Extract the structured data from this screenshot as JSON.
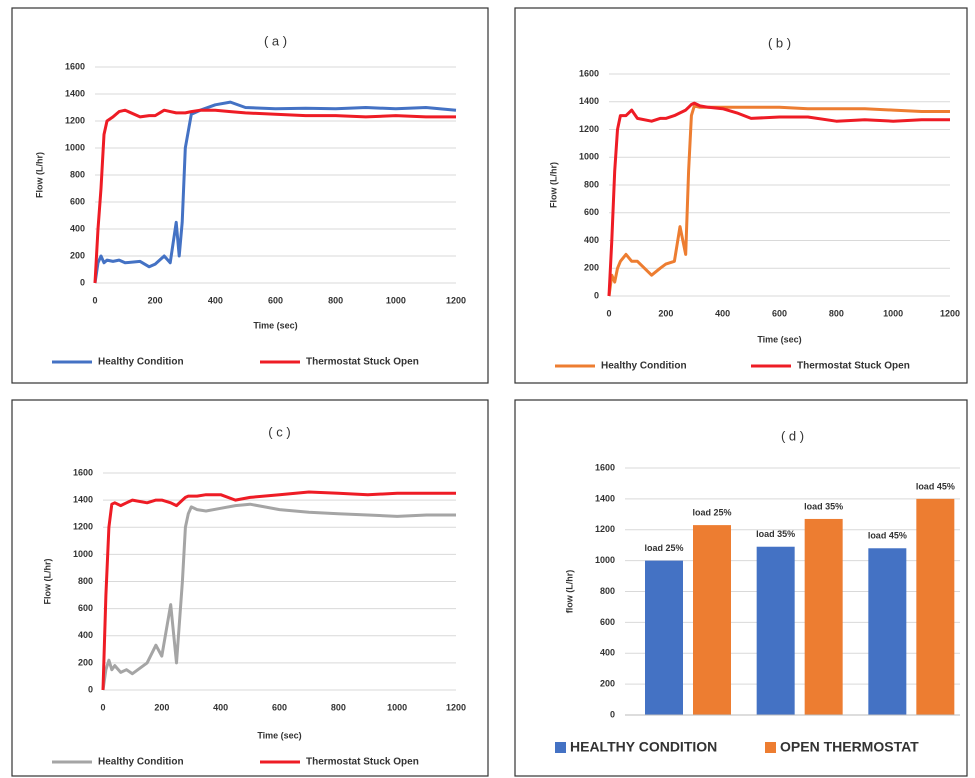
{
  "chart_data": [
    {
      "type": "line",
      "title": "( a )",
      "x_label": "Time (sec)",
      "y_label": "Flow (L/hr)",
      "x": [
        0,
        10,
        20,
        30,
        40,
        60,
        80,
        100,
        150,
        180,
        200,
        230,
        250,
        270,
        280,
        290,
        300,
        320,
        350,
        400,
        450,
        500,
        600,
        700,
        800,
        900,
        1000,
        1100,
        1200
      ],
      "series": [
        {
          "name": "Healthy Condition",
          "color": "#4472c4",
          "values": [
            0,
            150,
            200,
            150,
            170,
            160,
            170,
            150,
            160,
            120,
            140,
            200,
            150,
            450,
            200,
            450,
            1000,
            1250,
            1280,
            1320,
            1340,
            1300,
            1290,
            1295,
            1290,
            1300,
            1290,
            1300,
            1280
          ]
        },
        {
          "name": "Thermostat Stuck Open",
          "color": "#ee1c25",
          "values": [
            0,
            400,
            700,
            1100,
            1200,
            1230,
            1270,
            1280,
            1230,
            1240,
            1240,
            1280,
            1270,
            1260,
            1260,
            1260,
            1260,
            1270,
            1280,
            1280,
            1270,
            1260,
            1250,
            1240,
            1240,
            1230,
            1240,
            1230,
            1230
          ]
        }
      ],
      "xlim": [
        0,
        1200
      ],
      "xticks": [
        0,
        200,
        400,
        600,
        800,
        1000,
        1200
      ],
      "ylim": [
        0,
        1600
      ],
      "yticks": [
        0,
        200,
        400,
        600,
        800,
        1000,
        1200,
        1400,
        1600
      ],
      "grid": true,
      "legend": "bottom"
    },
    {
      "type": "line",
      "title": "( b )",
      "x_label": "Time (sec)",
      "y_label": "Flow (L/hr)",
      "x": [
        0,
        10,
        20,
        30,
        40,
        60,
        80,
        100,
        150,
        180,
        200,
        230,
        250,
        270,
        280,
        290,
        300,
        320,
        350,
        400,
        450,
        500,
        600,
        700,
        800,
        900,
        1000,
        1100,
        1200
      ],
      "series": [
        {
          "name": "Healthy Condition",
          "color": "#ed7d31",
          "values": [
            0,
            150,
            100,
            200,
            250,
            300,
            250,
            250,
            150,
            200,
            230,
            250,
            500,
            300,
            900,
            1300,
            1370,
            1360,
            1360,
            1360,
            1360,
            1360,
            1360,
            1350,
            1350,
            1350,
            1340,
            1330,
            1330
          ]
        },
        {
          "name": "Thermostat Stuck Open",
          "color": "#ee1c25",
          "values": [
            0,
            400,
            900,
            1200,
            1300,
            1300,
            1340,
            1280,
            1260,
            1280,
            1280,
            1300,
            1320,
            1340,
            1360,
            1380,
            1390,
            1370,
            1360,
            1350,
            1320,
            1280,
            1290,
            1290,
            1260,
            1270,
            1260,
            1270,
            1270
          ]
        }
      ],
      "xlim": [
        0,
        1200
      ],
      "xticks": [
        0,
        200,
        400,
        600,
        800,
        1000,
        1200
      ],
      "ylim": [
        0,
        1600
      ],
      "yticks": [
        0,
        200,
        400,
        600,
        800,
        1000,
        1200,
        1400,
        1600
      ],
      "grid": true,
      "legend": "bottom"
    },
    {
      "type": "line",
      "title": "( c )",
      "x_label": "Time (sec)",
      "y_label": "Flow (L/hr)",
      "x": [
        0,
        10,
        20,
        30,
        40,
        60,
        80,
        100,
        150,
        180,
        200,
        230,
        250,
        270,
        280,
        290,
        300,
        320,
        350,
        400,
        450,
        500,
        600,
        700,
        800,
        900,
        1000,
        1100,
        1200
      ],
      "series": [
        {
          "name": "Healthy Condition",
          "color": "#a5a5a5",
          "values": [
            0,
            150,
            220,
            150,
            180,
            130,
            150,
            120,
            200,
            330,
            250,
            630,
            200,
            800,
            1200,
            1300,
            1350,
            1330,
            1320,
            1340,
            1360,
            1370,
            1330,
            1310,
            1300,
            1290,
            1280,
            1290,
            1290
          ]
        },
        {
          "name": "Thermostat Stuck Open",
          "color": "#ee1c25",
          "values": [
            0,
            700,
            1200,
            1370,
            1380,
            1360,
            1380,
            1400,
            1380,
            1400,
            1400,
            1380,
            1360,
            1400,
            1420,
            1430,
            1430,
            1430,
            1440,
            1440,
            1400,
            1420,
            1440,
            1460,
            1450,
            1440,
            1450,
            1450,
            1450
          ]
        }
      ],
      "xlim": [
        0,
        1200
      ],
      "xticks": [
        0,
        200,
        400,
        600,
        800,
        1000,
        1200
      ],
      "ylim": [
        0,
        1600
      ],
      "yticks": [
        0,
        200,
        400,
        600,
        800,
        1000,
        1200,
        1400,
        1600
      ],
      "grid": true,
      "legend": "bottom"
    },
    {
      "type": "bar",
      "title": "( d )",
      "y_label": "flow (L/hr)",
      "categories": [
        "load 25%",
        "load 35%",
        "load 45%"
      ],
      "series": [
        {
          "name": "HEALTHY CONDITION",
          "color": "#4472c4",
          "values": [
            1000,
            1090,
            1080
          ]
        },
        {
          "name": "OPEN THERMOSTAT",
          "color": "#ed7d31",
          "values": [
            1230,
            1270,
            1400
          ]
        }
      ],
      "ylim": [
        0,
        1600
      ],
      "yticks": [
        0,
        200,
        400,
        600,
        800,
        1000,
        1200,
        1400,
        1600
      ],
      "grid": true,
      "legend": "bottom"
    }
  ]
}
